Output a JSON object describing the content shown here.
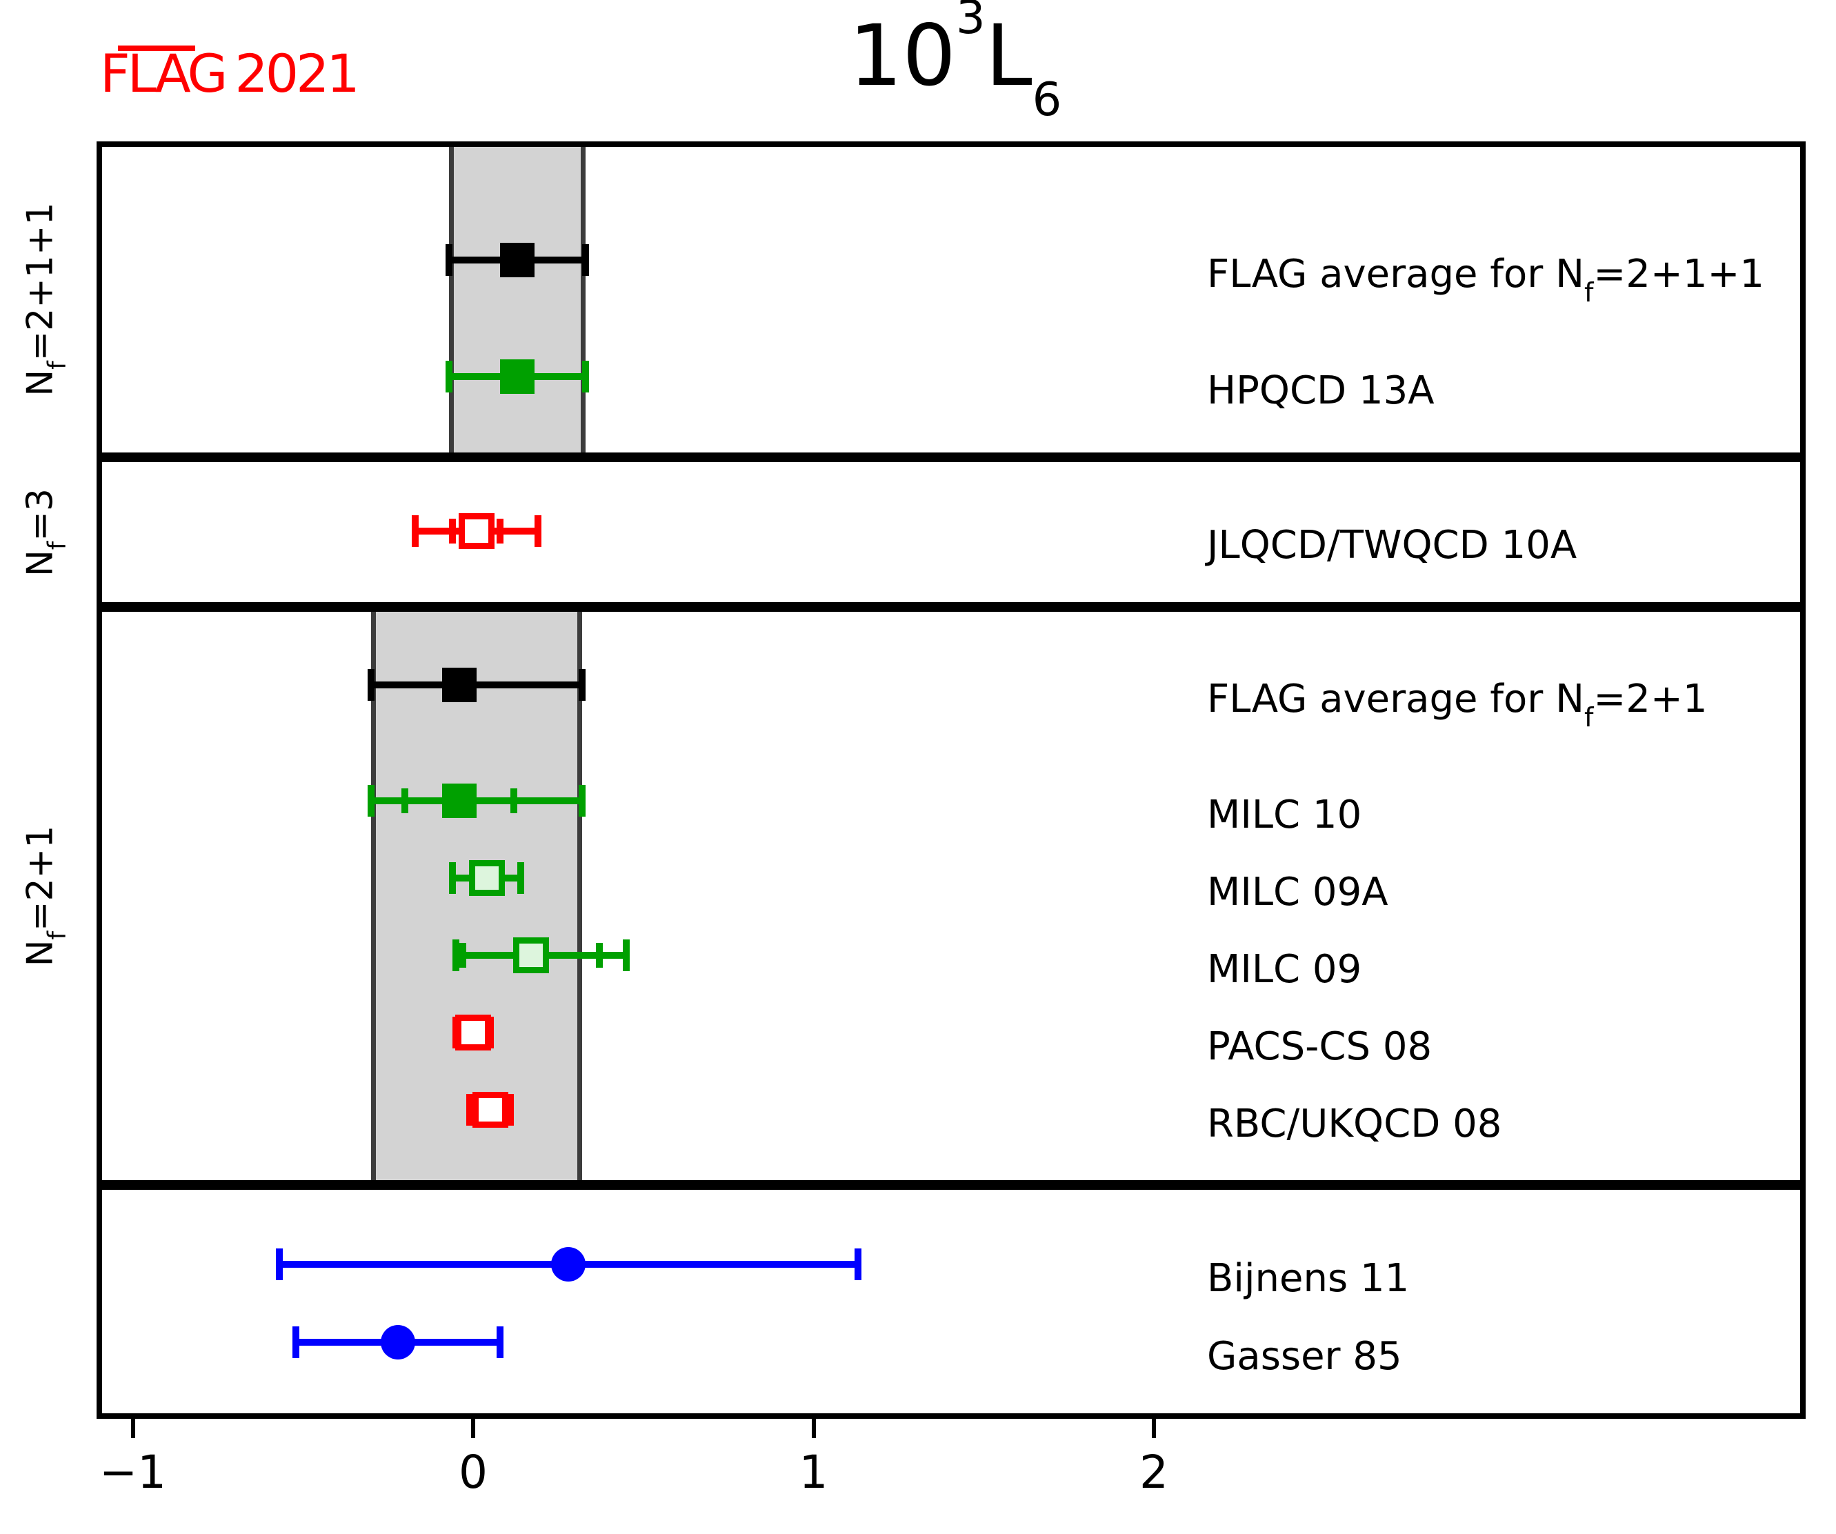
{
  "logo": {
    "flag": "FLAG",
    "year": "2021",
    "color": "#ff0000"
  },
  "title": {
    "base1": "10",
    "sup": "3",
    "base2": "L",
    "sub": "6",
    "full": "10³L₆"
  },
  "colors": {
    "flag_red": "#ff0000",
    "average_black": "#000000",
    "lattice_green": "#00a000",
    "pale_green_fill": "#ddf5dd",
    "excluded_red": "#ff0000",
    "phenomenology_blue": "#0000ff",
    "band_gray": "#d3d3d3",
    "band_edge_gray": "#3c3c3c",
    "white": "#ffffff"
  },
  "chart_data": {
    "type": "scatter",
    "subtype": "forest-errorbar",
    "title": "10³L₆",
    "xlabel": "",
    "xlim": [
      -1.11,
      3.92
    ],
    "xticks": [
      -1,
      0,
      1,
      2
    ],
    "xtick_labels": [
      "−1",
      "0",
      "1",
      "2"
    ],
    "grid": false,
    "legend": "none",
    "sections": [
      {
        "id": "nf-2p1p1",
        "side_label": "Nf=2+1+1",
        "side_label_pre": "N",
        "side_label_sub": "f",
        "side_label_post": "=2+1+1",
        "band": [
          -0.07,
          0.33
        ],
        "rows": [
          {
            "label": "FLAG average for Nf=2+1+1",
            "label_pre": "FLAG average for N",
            "label_sub": "f",
            "label_post": "=2+1+1",
            "value": 0.13,
            "err_stat": null,
            "err_total": [
              0.2,
              0.2
            ],
            "marker": "square-filled",
            "color": "#000000",
            "fill": "#000000"
          },
          {
            "label": "HPQCD 13A",
            "label_pre": "HPQCD 13A",
            "label_sub": "",
            "label_post": "",
            "value": 0.13,
            "err_stat": null,
            "err_total": [
              0.2,
              0.2
            ],
            "marker": "square-filled",
            "color": "#00a000",
            "fill": "#00a000"
          }
        ]
      },
      {
        "id": "nf-3",
        "side_label": "Nf=3",
        "side_label_pre": "N",
        "side_label_sub": "f",
        "side_label_post": "=3",
        "band": null,
        "rows": [
          {
            "label": "JLQCD/TWQCD 10A",
            "label_pre": "JLQCD/TWQCD 10A",
            "label_sub": "",
            "label_post": "",
            "value": 0.01,
            "err_stat": [
              0.07,
              0.07
            ],
            "err_total": [
              0.18,
              0.18
            ],
            "marker": "square-open",
            "color": "#ff0000",
            "fill": "#ffffff"
          }
        ]
      },
      {
        "id": "nf-2p1",
        "side_label": "Nf=2+1",
        "side_label_pre": "N",
        "side_label_sub": "f",
        "side_label_post": "=2+1",
        "band": [
          -0.3,
          0.32
        ],
        "rows": [
          {
            "label": "FLAG average for Nf=2+1",
            "label_pre": "FLAG average for N",
            "label_sub": "f",
            "label_post": "=2+1",
            "value": -0.04,
            "err_stat": null,
            "err_total": [
              0.26,
              0.36
            ],
            "marker": "square-filled",
            "color": "#000000",
            "fill": "#000000"
          },
          {
            "label": "MILC 10",
            "label_pre": "MILC 10",
            "label_sub": "",
            "label_post": "",
            "value": -0.04,
            "err_stat": [
              0.16,
              0.16
            ],
            "err_total": [
              0.26,
              0.36
            ],
            "marker": "square-filled",
            "color": "#00a000",
            "fill": "#00a000"
          },
          {
            "label": "MILC 09A",
            "label_pre": "MILC 09A",
            "label_sub": "",
            "label_post": "",
            "value": 0.04,
            "err_stat": null,
            "err_total": [
              0.1,
              0.1
            ],
            "marker": "square-open",
            "color": "#00a000",
            "fill": "#ddf5dd"
          },
          {
            "label": "MILC 09",
            "label_pre": "MILC 09",
            "label_sub": "",
            "label_post": "",
            "value": 0.17,
            "err_stat": [
              0.2,
              0.2
            ],
            "err_total": [
              0.22,
              0.28
            ],
            "marker": "square-open",
            "color": "#00a000",
            "fill": "#ddf5dd"
          },
          {
            "label": "PACS-CS 08",
            "label_pre": "PACS-CS 08",
            "label_sub": "",
            "label_post": "",
            "value": 0.0,
            "err_stat": null,
            "err_total": [
              0.05,
              0.05
            ],
            "marker": "square-open",
            "color": "#ff0000",
            "fill": "#ffffff"
          },
          {
            "label": "RBC/UKQCD 08",
            "label_pre": "RBC/UKQCD 08",
            "label_sub": "",
            "label_post": "",
            "value": 0.05,
            "err_stat": null,
            "err_total": [
              0.06,
              0.06
            ],
            "marker": "square-open",
            "color": "#ff0000",
            "fill": "#ffffff"
          }
        ]
      },
      {
        "id": "phenomenology",
        "side_label": "",
        "side_label_pre": "",
        "side_label_sub": "",
        "side_label_post": "",
        "band": null,
        "rows": [
          {
            "label": "Bijnens 11",
            "label_pre": "Bijnens 11",
            "label_sub": "",
            "label_post": "",
            "value": 0.28,
            "err_stat": null,
            "err_total": [
              0.85,
              0.85
            ],
            "marker": "circle-filled",
            "color": "#0000ff",
            "fill": "#0000ff"
          },
          {
            "label": "Gasser 85",
            "label_pre": "Gasser 85",
            "label_sub": "",
            "label_post": "",
            "value": -0.22,
            "err_stat": null,
            "err_total": [
              0.3,
              0.3
            ],
            "marker": "circle-filled",
            "color": "#0000ff",
            "fill": "#0000ff"
          }
        ]
      }
    ]
  }
}
